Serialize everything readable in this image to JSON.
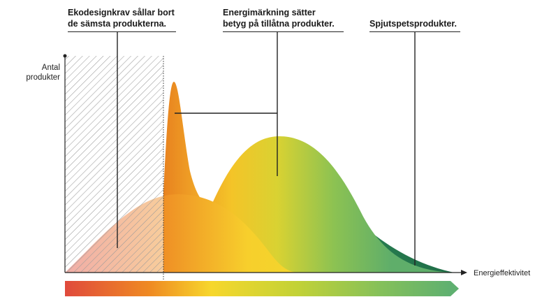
{
  "annotations": {
    "ecodesign": [
      "Ekodesignkrav sållar bort",
      "de sämsta produkterna."
    ],
    "energy_label": [
      "Energimärkning sätter",
      "betyg på tillåtna produkter."
    ],
    "top_products": [
      "Spjutspetsprodukter."
    ]
  },
  "axes": {
    "y_label": [
      "Antal",
      "produkter"
    ],
    "x_label": "Energieffektivitet"
  },
  "colors": {
    "red": "#e04a3c",
    "orange": "#ef8a22",
    "yellow": "#f6d22c",
    "green": "#63b36a",
    "dark_green": "#2a7a52",
    "hatch": "#9a9a9a",
    "axis": "#222222"
  }
}
